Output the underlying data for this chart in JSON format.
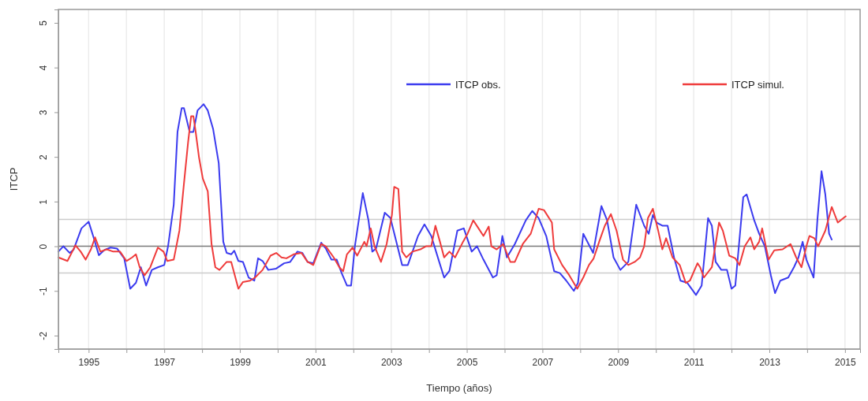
{
  "chart_data": {
    "type": "line",
    "xlabel": "Tiempo (años)",
    "ylabel": "ITCP",
    "xlim": [
      1994.2,
      2015.4
    ],
    "ylim": [
      -2.3,
      5.3
    ],
    "xticks": [
      1995,
      {
        "value": 1996,
        "label": null
      },
      1997,
      {
        "value": 1998,
        "label": null
      },
      1999,
      {
        "value": 2000,
        "label": null
      },
      2001,
      {
        "value": 2002,
        "label": null
      },
      2003,
      {
        "value": 2004,
        "label": null
      },
      2005,
      {
        "value": 2006,
        "label": null
      },
      2007,
      {
        "value": 2008,
        "label": null
      },
      2009,
      {
        "value": 2010,
        "label": null
      },
      2011,
      {
        "value": 2012,
        "label": null
      },
      2013,
      {
        "value": 2014,
        "label": null
      },
      2015
    ],
    "yticks": [
      -2,
      -1,
      0,
      1,
      2,
      3,
      4,
      5
    ],
    "grid": "x",
    "legend": "top right",
    "line_style": "solid",
    "ref_lines": [
      {
        "axis": "y",
        "value": 0,
        "color": "#777777"
      },
      {
        "axis": "y",
        "value": 0.6,
        "color": "#cccccc"
      },
      {
        "axis": "y",
        "value": -0.6,
        "color": "#cccccc"
      }
    ],
    "series": [
      {
        "name": "ITCP obs.",
        "color": "#3b3bef",
        "x": [
          1994.2,
          1994.33,
          1994.5,
          1994.6,
          1994.81,
          1995.0,
          1995.13,
          1995.27,
          1995.42,
          1995.58,
          1995.75,
          1995.94,
          1996.1,
          1996.25,
          1996.38,
          1996.52,
          1996.67,
          1996.83,
          1997.0,
          1997.1,
          1997.25,
          1997.35,
          1997.46,
          1997.52,
          1997.67,
          1997.77,
          1997.88,
          1998.04,
          1998.15,
          1998.29,
          1998.44,
          1998.56,
          1998.65,
          1998.77,
          1998.85,
          1998.96,
          1999.08,
          1999.23,
          1999.38,
          1999.48,
          1999.6,
          1999.75,
          1999.96,
          2000.17,
          2000.33,
          2000.52,
          2000.65,
          2000.79,
          2000.94,
          2001.15,
          2001.27,
          2001.42,
          2001.56,
          2001.69,
          2001.83,
          2001.94,
          2002.04,
          2002.25,
          2002.4,
          2002.5,
          2002.6,
          2002.83,
          2002.98,
          2003.29,
          2003.44,
          2003.71,
          2003.88,
          2004.06,
          2004.27,
          2004.4,
          2004.54,
          2004.75,
          2004.92,
          2005.13,
          2005.27,
          2005.44,
          2005.69,
          2005.79,
          2005.94,
          2006.06,
          2006.27,
          2006.56,
          2006.73,
          2006.9,
          2007.1,
          2007.31,
          2007.46,
          2007.63,
          2007.83,
          2007.94,
          2008.08,
          2008.34,
          2008.56,
          2008.71,
          2008.88,
          2009.06,
          2009.27,
          2009.48,
          2009.69,
          2009.81,
          2009.92,
          2010.02,
          2010.17,
          2010.31,
          2010.48,
          2010.65,
          2010.83,
          2010.94,
          2011.06,
          2011.21,
          2011.38,
          2011.48,
          2011.58,
          2011.73,
          2011.88,
          2012.0,
          2012.1,
          2012.31,
          2012.4,
          2012.6,
          2012.73,
          2012.88,
          2013.04,
          2013.15,
          2013.29,
          2013.5,
          2013.65,
          2013.77,
          2013.88,
          2013.98,
          2014.17,
          2014.27,
          2014.38,
          2014.48,
          2014.58,
          2014.65
        ],
        "values": [
          -0.12,
          0,
          -0.15,
          -0.08,
          0.4,
          0.55,
          0.2,
          -0.2,
          -0.08,
          -0.03,
          -0.05,
          -0.27,
          -0.95,
          -0.82,
          -0.47,
          -0.88,
          -0.53,
          -0.47,
          -0.42,
          0,
          0.93,
          2.56,
          3.09,
          3.09,
          2.56,
          2.56,
          3.04,
          3.18,
          3.04,
          2.63,
          1.86,
          0.1,
          -0.15,
          -0.18,
          -0.1,
          -0.33,
          -0.35,
          -0.7,
          -0.77,
          -0.27,
          -0.33,
          -0.53,
          -0.5,
          -0.38,
          -0.35,
          -0.12,
          -0.15,
          -0.35,
          -0.38,
          0.08,
          -0.05,
          -0.3,
          -0.3,
          -0.6,
          -0.88,
          -0.88,
          0,
          1.19,
          0.58,
          -0.12,
          -0.05,
          0.75,
          0.63,
          -0.42,
          -0.42,
          0.23,
          0.49,
          0.23,
          -0.35,
          -0.7,
          -0.55,
          0.35,
          0.4,
          -0.12,
          0,
          -0.3,
          -0.7,
          -0.65,
          0.23,
          -0.25,
          0.05,
          0.58,
          0.79,
          0.63,
          0.23,
          -0.56,
          -0.6,
          -0.77,
          -1.0,
          -0.82,
          0.28,
          -0.15,
          0.9,
          0.58,
          -0.25,
          -0.53,
          -0.35,
          0.93,
          0.46,
          0.28,
          0.7,
          0.53,
          0.46,
          0.46,
          -0.25,
          -0.77,
          -0.82,
          -0.95,
          -1.09,
          -0.88,
          0.63,
          0.46,
          -0.35,
          -0.53,
          -0.53,
          -0.95,
          -0.88,
          1.1,
          1.16,
          0.58,
          0.28,
          0,
          -0.65,
          -1.05,
          -0.77,
          -0.7,
          -0.47,
          -0.25,
          0.1,
          -0.3,
          -0.7,
          0.58,
          1.68,
          1.16,
          0.28,
          0.15
        ]
      },
      {
        "name": "ITCP simul.",
        "color": "#ef3b3b",
        "x": [
          1994.2,
          1994.44,
          1994.65,
          1994.79,
          1994.92,
          1995.06,
          1995.17,
          1995.31,
          1995.48,
          1995.65,
          1995.83,
          1996.0,
          1996.15,
          1996.25,
          1996.35,
          1996.48,
          1996.63,
          1996.83,
          1996.98,
          1997.08,
          1997.25,
          1997.4,
          1997.52,
          1997.63,
          1997.71,
          1997.77,
          1997.83,
          1997.92,
          1998.02,
          1998.15,
          1998.25,
          1998.35,
          1998.46,
          1998.65,
          1998.77,
          1998.96,
          1999.08,
          1999.27,
          1999.4,
          1999.6,
          1999.81,
          1999.96,
          2000.1,
          2000.23,
          2000.42,
          2000.63,
          2000.79,
          2000.94,
          2001.15,
          2001.27,
          2001.48,
          2001.63,
          2001.73,
          2001.83,
          2001.98,
          2002.1,
          2002.29,
          2002.35,
          2002.46,
          2002.56,
          2002.73,
          2002.88,
          2003.02,
          2003.08,
          2003.19,
          2003.29,
          2003.4,
          2003.56,
          2003.77,
          2003.92,
          2004.06,
          2004.17,
          2004.29,
          2004.4,
          2004.54,
          2004.69,
          2004.9,
          2005.02,
          2005.17,
          2005.31,
          2005.44,
          2005.58,
          2005.65,
          2005.79,
          2005.96,
          2006.15,
          2006.27,
          2006.48,
          2006.69,
          2006.9,
          2007.04,
          2007.25,
          2007.31,
          2007.52,
          2007.71,
          2007.92,
          2008.08,
          2008.23,
          2008.35,
          2008.5,
          2008.65,
          2008.81,
          2008.96,
          2009.13,
          2009.27,
          2009.44,
          2009.58,
          2009.69,
          2009.79,
          2009.92,
          2010.06,
          2010.17,
          2010.27,
          2010.44,
          2010.63,
          2010.79,
          2010.9,
          2011.1,
          2011.17,
          2011.27,
          2011.48,
          2011.67,
          2011.77,
          2011.94,
          2012.1,
          2012.21,
          2012.35,
          2012.5,
          2012.6,
          2012.73,
          2012.81,
          2012.98,
          2013.13,
          2013.35,
          2013.56,
          2013.71,
          2013.85,
          2013.98,
          2014.06,
          2014.19,
          2014.29,
          2014.48,
          2014.65,
          2014.81,
          2014.96,
          2015.02
        ],
        "values": [
          -0.25,
          -0.33,
          0.02,
          -0.12,
          -0.3,
          -0.07,
          0.2,
          -0.12,
          -0.07,
          -0.12,
          -0.12,
          -0.33,
          -0.25,
          -0.18,
          -0.47,
          -0.65,
          -0.47,
          -0.03,
          -0.12,
          -0.33,
          -0.3,
          0.35,
          1.4,
          2.33,
          2.91,
          2.91,
          2.56,
          1.98,
          1.51,
          1.23,
          0.05,
          -0.47,
          -0.53,
          -0.35,
          -0.35,
          -0.95,
          -0.8,
          -0.77,
          -0.7,
          -0.53,
          -0.21,
          -0.15,
          -0.25,
          -0.27,
          -0.18,
          -0.15,
          -0.35,
          -0.42,
          0.05,
          0,
          -0.25,
          -0.47,
          -0.56,
          -0.18,
          -0.03,
          -0.21,
          0.1,
          0,
          0.4,
          0,
          -0.35,
          0.05,
          0.7,
          1.33,
          1.28,
          -0.12,
          -0.25,
          -0.12,
          -0.07,
          0,
          0,
          0.46,
          0.1,
          -0.25,
          -0.12,
          -0.25,
          0.1,
          0.28,
          0.58,
          0.4,
          0.23,
          0.44,
          0,
          -0.07,
          0.05,
          -0.35,
          -0.35,
          0.05,
          0.28,
          0.84,
          0.81,
          0.53,
          -0.07,
          -0.42,
          -0.65,
          -0.95,
          -0.7,
          -0.42,
          -0.28,
          0.1,
          0.46,
          0.72,
          0.35,
          -0.3,
          -0.42,
          -0.35,
          -0.25,
          0,
          0.63,
          0.84,
          0.35,
          -0.07,
          0.18,
          -0.25,
          -0.42,
          -0.82,
          -0.77,
          -0.38,
          -0.47,
          -0.7,
          -0.47,
          0.53,
          0.35,
          -0.21,
          -0.27,
          -0.42,
          0,
          0.2,
          -0.07,
          0.1,
          0.4,
          -0.3,
          -0.09,
          -0.07,
          0.05,
          -0.25,
          -0.47,
          0,
          0.23,
          0.18,
          0,
          0.35,
          0.88,
          0.53,
          0.63,
          0.67
        ]
      }
    ]
  }
}
